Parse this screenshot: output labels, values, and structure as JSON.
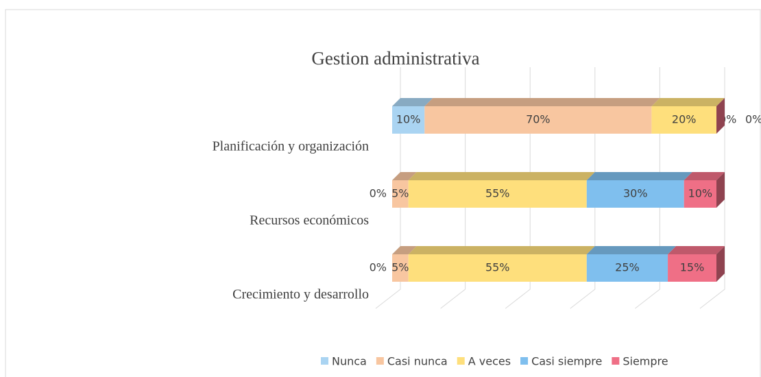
{
  "chart_data": {
    "type": "bar3d",
    "orientation": "horizontal",
    "stacked": true,
    "title": "Gestion administrativa",
    "categories": [
      "Planificación y organización",
      "Recursos económicos",
      "Crecimiento y desarrollo"
    ],
    "series": [
      {
        "name": "Nunca",
        "color": "#aad4f2",
        "values": [
          10,
          0,
          0
        ],
        "value_labels": [
          "10%",
          "0%",
          "0%"
        ]
      },
      {
        "name": "Casi nunca",
        "color": "#f8c6a0",
        "values": [
          70,
          5,
          5
        ],
        "value_labels": [
          "70%",
          "5%",
          "5%"
        ]
      },
      {
        "name": "A veces",
        "color": "#fedf7c",
        "values": [
          20,
          55,
          55
        ],
        "value_labels": [
          "20%",
          "55%",
          "55%"
        ]
      },
      {
        "name": "Casi siempre",
        "color": "#7fbfee",
        "values": [
          0,
          30,
          25
        ],
        "value_labels": [
          "0%",
          "30%",
          "25%"
        ]
      },
      {
        "name": "Siempre",
        "color": "#ef6f86",
        "values": [
          0,
          10,
          15
        ],
        "value_labels": [
          "0%",
          "10%",
          "15%"
        ]
      }
    ],
    "xlim": [
      0,
      100
    ],
    "xticks": [
      0,
      20,
      40,
      60,
      80,
      100
    ],
    "grid": true,
    "legend": "bottom-right"
  }
}
